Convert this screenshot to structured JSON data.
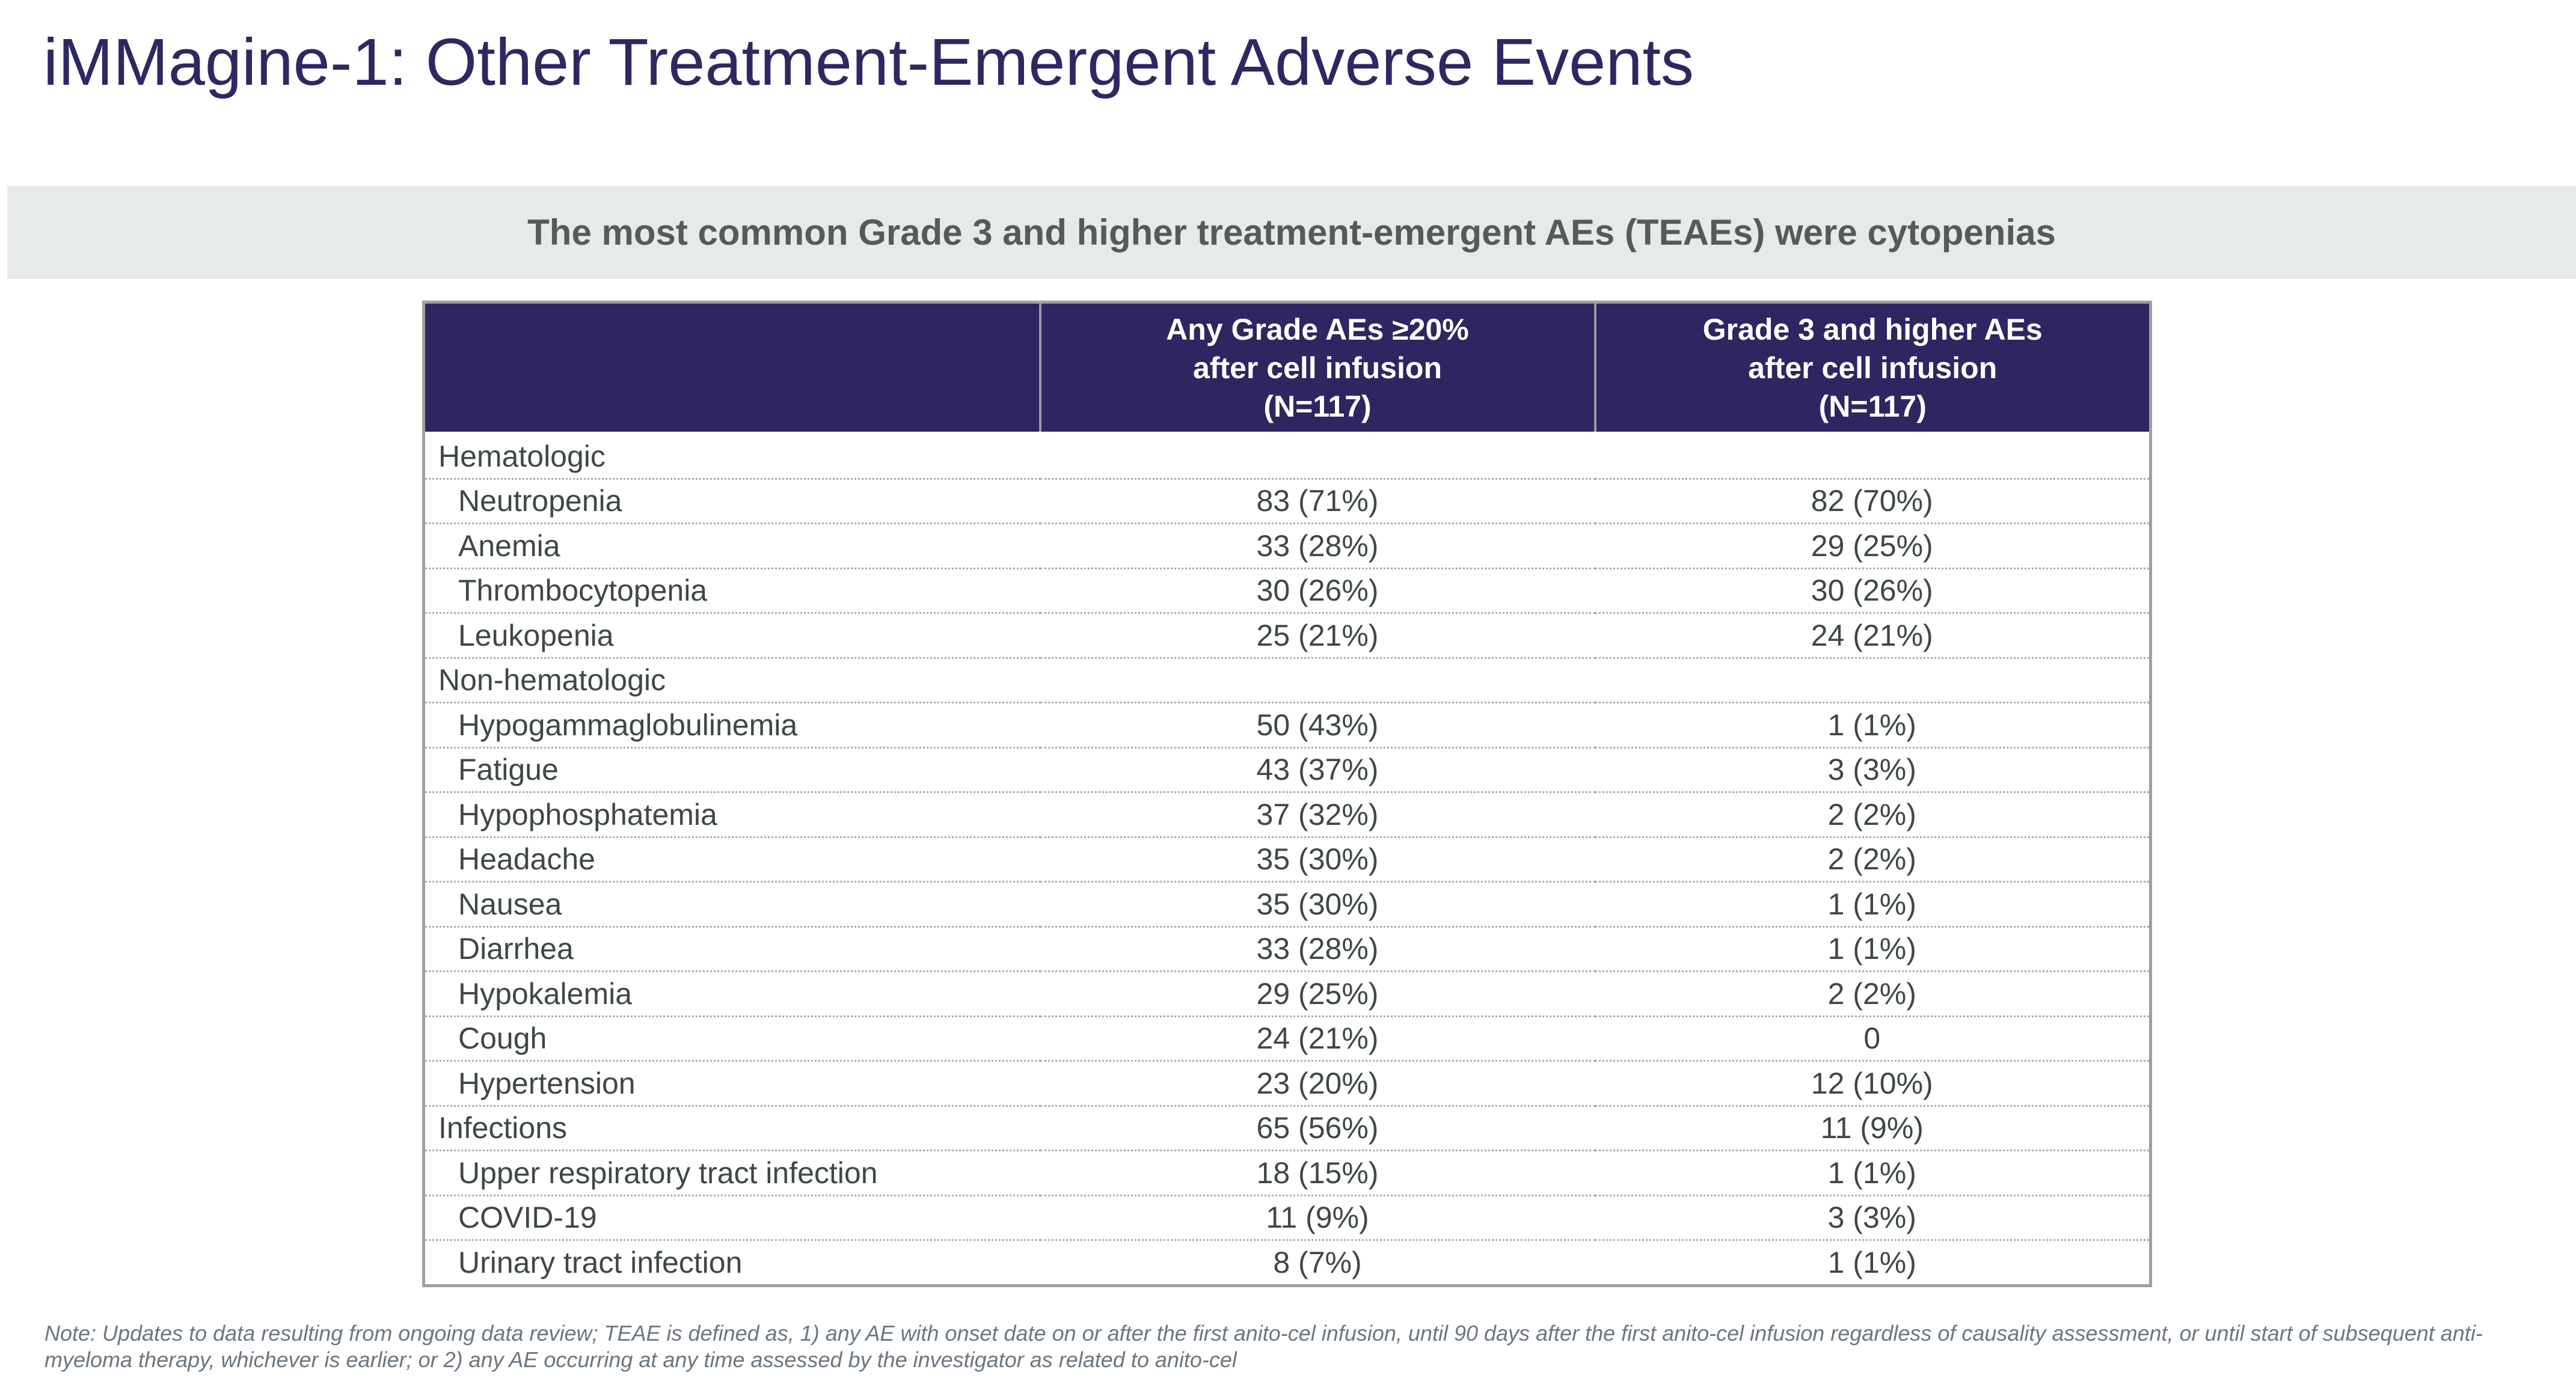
{
  "title": "iMMagine-1: Other Treatment-Emergent Adverse Events",
  "subtitle": "The most common Grade 3 and higher treatment-emergent AEs (TEAEs) were cytopenias",
  "table": {
    "headers": [
      "",
      [
        "Any Grade AEs ≥20%",
        "after cell infusion",
        "(N=117)"
      ],
      [
        "Grade 3 and higher AEs",
        "after cell infusion",
        "(N=117)"
      ]
    ],
    "rows": [
      {
        "type": "category",
        "label": "Hematologic",
        "any": "",
        "g3": ""
      },
      {
        "type": "item",
        "label": "Neutropenia",
        "any": "83 (71%)",
        "g3": "82 (70%)"
      },
      {
        "type": "item",
        "label": "Anemia",
        "any": "33 (28%)",
        "g3": "29 (25%)"
      },
      {
        "type": "item",
        "label": "Thrombocytopenia",
        "any": "30 (26%)",
        "g3": "30 (26%)"
      },
      {
        "type": "item",
        "label": "Leukopenia",
        "any": "25 (21%)",
        "g3": "24 (21%)"
      },
      {
        "type": "category",
        "label": "Non-hematologic",
        "any": "",
        "g3": ""
      },
      {
        "type": "item",
        "label": "Hypogammaglobulinemia",
        "any": "50 (43%)",
        "g3": "1 (1%)"
      },
      {
        "type": "item",
        "label": "Fatigue",
        "any": "43 (37%)",
        "g3": "3 (3%)"
      },
      {
        "type": "item",
        "label": "Hypophosphatemia",
        "any": "37 (32%)",
        "g3": "2 (2%)"
      },
      {
        "type": "item",
        "label": "Headache",
        "any": "35 (30%)",
        "g3": "2 (2%)"
      },
      {
        "type": "item",
        "label": "Nausea",
        "any": "35 (30%)",
        "g3": "1 (1%)"
      },
      {
        "type": "item",
        "label": "Diarrhea",
        "any": "33 (28%)",
        "g3": "1 (1%)"
      },
      {
        "type": "item",
        "label": "Hypokalemia",
        "any": "29 (25%)",
        "g3": "2 (2%)"
      },
      {
        "type": "item",
        "label": "Cough",
        "any": "24 (21%)",
        "g3": "0"
      },
      {
        "type": "item",
        "label": "Hypertension",
        "any": "23 (20%)",
        "g3": "12 (10%)"
      },
      {
        "type": "category",
        "label": "Infections",
        "any": "65 (56%)",
        "g3": "11 (9%)"
      },
      {
        "type": "item",
        "label": "Upper respiratory tract infection",
        "any": "18 (15%)",
        "g3": "1 (1%)"
      },
      {
        "type": "item",
        "label": "COVID-19",
        "any": "11 (9%)",
        "g3": "3 (3%)"
      },
      {
        "type": "item",
        "label": "Urinary tract infection",
        "any": "8 (7%)",
        "g3": "1 (1%)"
      }
    ]
  },
  "note": "Note: Updates to data resulting from ongoing data review; TEAE is defined as, 1) any AE with onset date on or after the first anito-cel infusion, until 90 days after the first anito-cel infusion regardless of causality assessment, or until start of subsequent anti-myeloma therapy, whichever is earlier; or 2) any AE occurring at any time assessed by the investigator as related to anito-cel",
  "colors": {
    "title": "#2e2862",
    "header_bg": "#2d2660",
    "banner_bg": "#e6ebea",
    "category_bg": "#e6ebea"
  }
}
